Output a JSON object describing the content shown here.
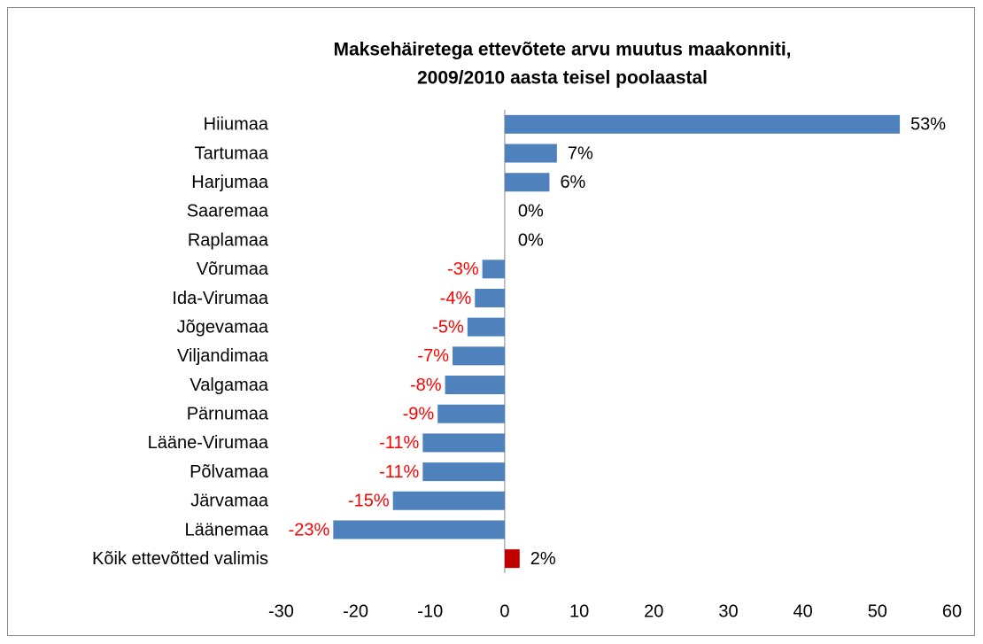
{
  "chart_data": {
    "type": "hbar",
    "title": [
      "Maksehäiretega ettevõtete arvu muutus maakonniti,",
      "2009/2010 aasta teisel poolaastal"
    ],
    "categories": [
      "Hiiumaa",
      "Tartumaa",
      "Harjumaa",
      "Saaremaa",
      "Raplamaa",
      "Võrumaa",
      "Ida-Virumaa",
      "Jõgevamaa",
      "Viljandimaa",
      "Valgamaa",
      "Pärnumaa",
      "Lääne-Virumaa",
      "Põlvamaa",
      "Järvamaa",
      "Läänemaa",
      "Kõik ettevõtted valimis"
    ],
    "values": [
      53,
      7,
      6,
      0,
      0,
      -3,
      -4,
      -5,
      -7,
      -8,
      -9,
      -11,
      -11,
      -15,
      -23,
      2
    ],
    "value_labels": [
      "53%",
      "7%",
      "6%",
      "0%",
      "0%",
      "-3%",
      "-4%",
      "-5%",
      "-7%",
      "-8%",
      "-9%",
      "-11%",
      "-11%",
      "-15%",
      "-23%",
      "2%"
    ],
    "colors": [
      "#4f81bd",
      "#4f81bd",
      "#4f81bd",
      "#4f81bd",
      "#4f81bd",
      "#4f81bd",
      "#4f81bd",
      "#4f81bd",
      "#4f81bd",
      "#4f81bd",
      "#4f81bd",
      "#4f81bd",
      "#4f81bd",
      "#4f81bd",
      "#4f81bd",
      "#c00000"
    ],
    "xlim": [
      -30,
      60
    ],
    "xticks": [
      -30,
      -20,
      -10,
      0,
      10,
      20,
      30,
      40,
      50,
      60
    ]
  }
}
